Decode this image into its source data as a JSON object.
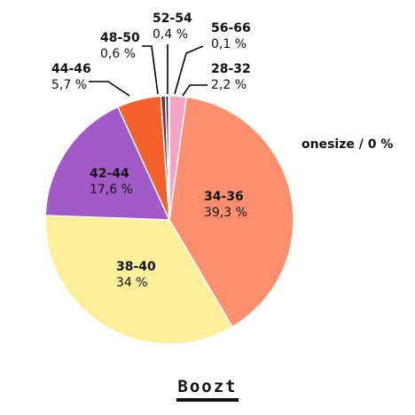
{
  "chart_data": {
    "type": "pie",
    "title": "",
    "slices": [
      {
        "label": "28-32",
        "value": 2.2,
        "display": "2,2 %",
        "color": "#f4a3c4"
      },
      {
        "label": "34-36",
        "value": 39.3,
        "display": "39,3 %",
        "color": "#fd8f6e"
      },
      {
        "label": "38-40",
        "value": 34,
        "display": "34 %",
        "color": "#fcee9b"
      },
      {
        "label": "42-44",
        "value": 17.6,
        "display": "17,6 %",
        "color": "#a25ac6"
      },
      {
        "label": "44-46",
        "value": 5.7,
        "display": "5,7 %",
        "color": "#f2622a"
      },
      {
        "label": "48-50",
        "value": 0.6,
        "display": "0,6 %",
        "color": "#7a2c3e"
      },
      {
        "label": "52-54",
        "value": 0.4,
        "display": "0,4 %",
        "color": "#2b2d45"
      },
      {
        "label": "56-66",
        "value": 0.1,
        "display": "0,1 %",
        "color": "#c8c8d8"
      },
      {
        "label": "onesize",
        "value": 0,
        "display": "0 %",
        "color": "#cccccc"
      }
    ],
    "extra_label": "onesize / 0 %"
  },
  "brand": {
    "name": "Boozt",
    "underline_color": "#111111"
  }
}
